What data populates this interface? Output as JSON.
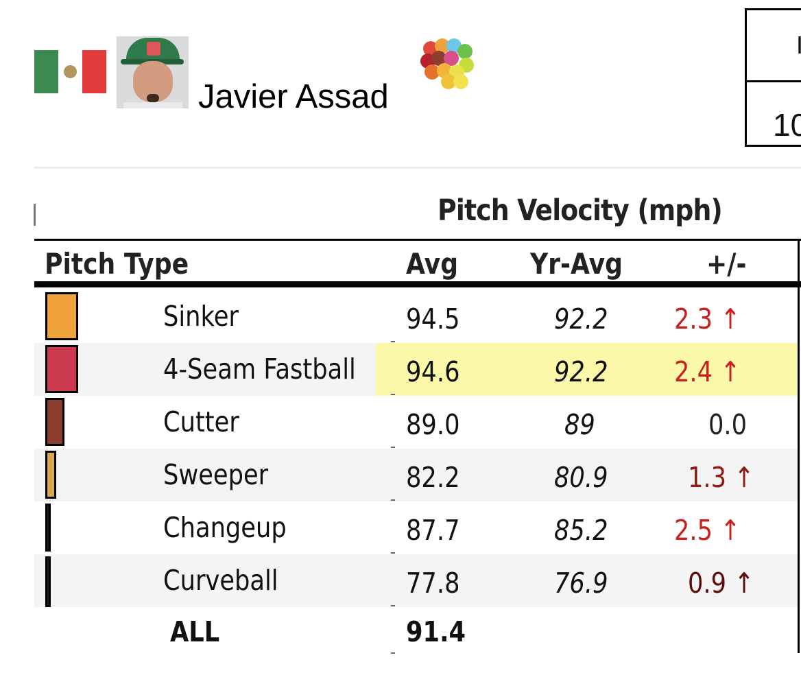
{
  "player": {
    "name": "Javier Assad",
    "flag_icon": "mexico-flag-icon",
    "photo_icon": "player-headshot",
    "pitch_mix_icon": "pitch-mix-balls-icon"
  },
  "topbox": {
    "row1": "I",
    "row2": "10"
  },
  "table": {
    "spanner_title": "Pitch Velocity (mph)",
    "columns": {
      "pitch_type": "Pitch Type",
      "avg": "Avg",
      "yr_avg": "Yr-Avg",
      "diff": "+/-"
    },
    "rows": [
      {
        "pitch": "Sinker",
        "avg": "94.5",
        "yr_avg": "92.2",
        "diff": "2.3 ↑",
        "diff_color": "#c8201e",
        "swatch_color": "#f0a23b",
        "usage": 1.0
      },
      {
        "pitch": "4-Seam Fastball",
        "avg": "94.6",
        "yr_avg": "92.2",
        "diff": "2.4 ↑",
        "diff_color": "#c8201e",
        "swatch_color": "#cc3a4f",
        "usage": 1.0,
        "highlight": true
      },
      {
        "pitch": "Cutter",
        "avg": "89.0",
        "yr_avg": "89",
        "diff": "0.0",
        "diff_color": "#222222",
        "swatch_color": "#8b3e2d",
        "usage": 0.55
      },
      {
        "pitch": "Sweeper",
        "avg": "82.2",
        "yr_avg": "80.9",
        "diff": "1.3 ↑",
        "diff_color": "#8b1a12",
        "swatch_color": "#d8a84b",
        "usage": 0.3
      },
      {
        "pitch": "Changeup",
        "avg": "87.7",
        "yr_avg": "85.2",
        "diff": "2.5 ↑",
        "diff_color": "#c8201e",
        "swatch_color": "#222222",
        "usage": 0.1
      },
      {
        "pitch": "Curveball",
        "avg": "77.8",
        "yr_avg": "76.9",
        "diff": "0.9 ↑",
        "diff_color": "#5a0d0a",
        "swatch_color": "#222222",
        "usage": 0.1
      }
    ],
    "total": {
      "label": "ALL",
      "avg": "91.4"
    }
  }
}
